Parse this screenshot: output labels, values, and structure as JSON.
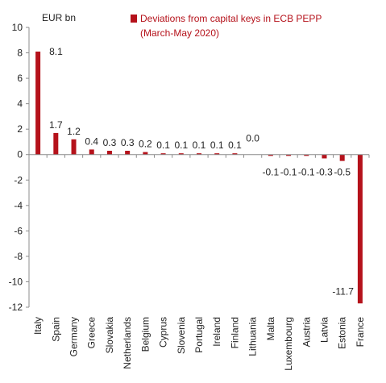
{
  "chart_data": {
    "type": "bar",
    "unit_label": "EUR bn",
    "categories": [
      "Italy",
      "Spain",
      "Germany",
      "Greece",
      "Slovakia",
      "Netherlands",
      "Belgium",
      "Cyprus",
      "Slovenia",
      "Portugal",
      "Ireland",
      "Finland",
      "Lithuania",
      "Malta",
      "Luxembourg",
      "Austria",
      "Latvia",
      "Estonia",
      "France"
    ],
    "series": [
      {
        "name": "Deviations from capital keys in ECB PEPP (March-May 2020)",
        "color": "#b5121b",
        "values": [
          8.1,
          1.7,
          1.2,
          0.4,
          0.3,
          0.3,
          0.2,
          0.1,
          0.1,
          0.1,
          0.1,
          0.1,
          0.0,
          -0.1,
          -0.1,
          -0.1,
          -0.3,
          -0.5,
          -11.7
        ],
        "labels": [
          "8.1",
          "1.7",
          "1.2",
          "0.4",
          "0.3",
          "0.3",
          "0.2",
          "0.1",
          "0.1",
          "0.1",
          "0.1",
          "0.1",
          "0.0",
          "-0.1",
          "-0.1",
          "-0.1",
          "-0.3",
          "-0.5",
          "-11.7"
        ]
      }
    ],
    "legend": {
      "line1": "Deviations from capital keys in ECB PEPP",
      "line2": "(March-May 2020)",
      "position": "top-right"
    },
    "ylim": [
      -12,
      10
    ],
    "yticks": [
      10,
      8,
      6,
      4,
      2,
      0,
      -2,
      -4,
      -6,
      -8,
      -10,
      -12
    ],
    "grid": false
  }
}
